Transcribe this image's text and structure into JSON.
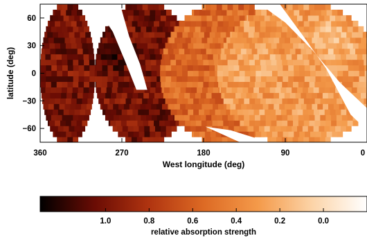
{
  "chart_data": {
    "type": "heatmap",
    "title": "",
    "xlabel": "West longitude (deg)",
    "ylabel": "latitude (deg)",
    "x_ticks": [
      360,
      270,
      180,
      90,
      0
    ],
    "y_ticks": [
      60,
      30,
      0,
      -30,
      -60
    ],
    "xlim": [
      360,
      0
    ],
    "ylim": [
      -75,
      75
    ],
    "x_direction": "decreasing",
    "regions": [
      {
        "lon_center": 330,
        "lon_halfwidth": 30,
        "value": 1.0
      },
      {
        "lon_center": 245,
        "lon_halfwidth": 55,
        "value": 1.0
      },
      {
        "lon_center": 153,
        "lon_halfwidth": 75,
        "value": 0.55
      },
      {
        "lon_center": 75,
        "lon_halfwidth": 90,
        "value": 0.3
      }
    ],
    "hotspots": [
      {
        "lon": 280,
        "lat": 20,
        "value": 1.25
      },
      {
        "lon": 40,
        "lat": 35,
        "value": 0.0
      },
      {
        "lon": 120,
        "lat": 10,
        "value": 0.2
      }
    ],
    "colorbar": {
      "label": "relative absorption strength",
      "ticks": [
        1.0,
        0.8,
        0.6,
        0.4,
        0.2,
        0.0
      ],
      "tick_labels": [
        "1.0",
        "0.8",
        "0.6",
        "0.4",
        "0.2",
        "0.0"
      ],
      "range": [
        1.3,
        -0.2
      ],
      "colormap": "black-red-orange-white",
      "colors": [
        "#000000",
        "#6a0c04",
        "#b03410",
        "#dd6a24",
        "#f49a4a",
        "#fcd4a8",
        "#ffffff"
      ]
    }
  }
}
